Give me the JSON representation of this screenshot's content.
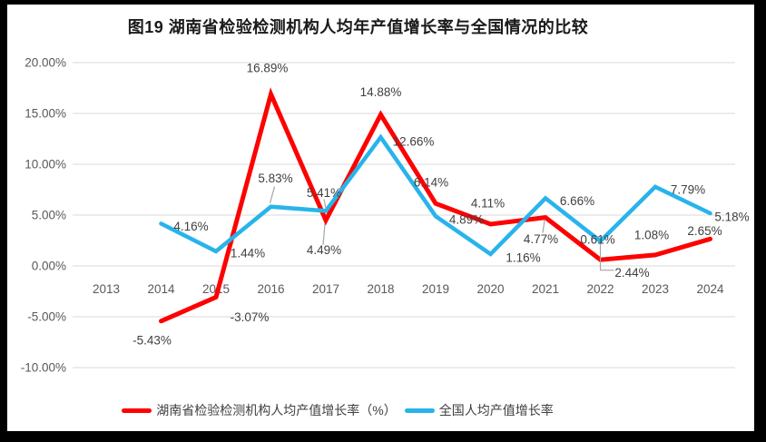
{
  "frame": {
    "border_color": "#000000",
    "canvas_background": "#FFFFFF"
  },
  "chart_data": {
    "type": "line",
    "title": "图19 湖南省检验检测机构人均年产值增长率与全国情况的比较",
    "categories": [
      "2013",
      "2014",
      "2015",
      "2016",
      "2017",
      "2018",
      "2019",
      "2020",
      "2021",
      "2022",
      "2023",
      "2024"
    ],
    "series": [
      {
        "id": "hunan",
        "name": "湖南省检验检测机构人均产值增长率（%）",
        "color": "#FE0000",
        "width": 5,
        "values": [
          null,
          -5.43,
          -3.07,
          16.89,
          4.49,
          14.88,
          6.14,
          4.11,
          4.77,
          0.61,
          1.08,
          2.65
        ],
        "labels": [
          null,
          {
            "text": "-5.43%",
            "dx": -10,
            "dy": 21
          },
          {
            "text": "-3.07%",
            "dx": 37,
            "dy": 22
          },
          {
            "text": "16.89%",
            "dx": -4,
            "dy": -29
          },
          {
            "text": "4.49%",
            "dx": -2,
            "dy": 33,
            "leader": [
              [
                -1,
                4
              ],
              [
                -3,
                27
              ]
            ]
          },
          {
            "text": "14.88%",
            "dx": 0,
            "dy": -25
          },
          {
            "text": "6.14%",
            "dx": -5,
            "dy": -23
          },
          {
            "text": "4.11%",
            "dx": -3,
            "dy": -23
          },
          {
            "text": "4.77%",
            "dx": -5,
            "dy": 24,
            "leader": [
              [
                -1,
                3
              ],
              [
                -3,
                17
              ]
            ]
          },
          {
            "text": "0.61%",
            "dx": -3,
            "dy": -22
          },
          {
            "text": "1.08%",
            "dx": -4,
            "dy": -22
          },
          {
            "text": "2.65%",
            "dx": -6,
            "dy": -9
          }
        ]
      },
      {
        "id": "national",
        "name": "全国人均产值增长率",
        "color": "#28B4EB",
        "width": 4.5,
        "values": [
          null,
          4.16,
          1.44,
          5.83,
          5.41,
          12.66,
          4.89,
          1.16,
          6.66,
          2.44,
          7.79,
          5.18
        ],
        "labels": [
          null,
          {
            "text": "4.16%",
            "dx": 33,
            "dy": 3
          },
          {
            "text": "1.44%",
            "dx": 35,
            "dy": 2
          },
          {
            "text": "5.83%",
            "dx": 5,
            "dy": -31,
            "leader": [
              [
                4,
                -22
              ],
              [
                -1,
                -4
              ]
            ]
          },
          {
            "text": "5.41%",
            "dx": -2,
            "dy": -20,
            "leader": [
              [
                -2,
                -13
              ],
              [
                0,
                -3
              ]
            ]
          },
          {
            "text": "12.66%",
            "dx": 36,
            "dy": 5
          },
          {
            "text": "4.89%",
            "dx": 34,
            "dy": 4
          },
          {
            "text": "1.16%",
            "dx": 36,
            "dy": 4
          },
          {
            "text": "6.66%",
            "dx": 35,
            "dy": 3
          },
          {
            "text": "2.44%",
            "dx": 35,
            "dy": 35,
            "leader": [
              [
                0,
                1
              ],
              [
                0,
                32
              ],
              [
                15,
                32
              ]
            ]
          },
          {
            "text": "7.79%",
            "dx": 36,
            "dy": 3
          },
          {
            "text": "5.18%",
            "dx": 24,
            "dy": 4
          }
        ]
      }
    ],
    "y_axis": {
      "min": -10,
      "max": 20,
      "step": 5,
      "tick_labels": [
        "20.00%",
        "15.00%",
        "10.00%",
        "5.00%",
        "0.00%",
        "-5.00%",
        "-10.00%"
      ]
    },
    "grid": true,
    "legend_position": "bottom",
    "data_labels": true,
    "styles": {
      "gridline": "#D9D9D9",
      "axis_text": "#595959",
      "label_text": "#404040",
      "leader": "#A6A6A6",
      "title_text": "#1A1A1A"
    }
  }
}
